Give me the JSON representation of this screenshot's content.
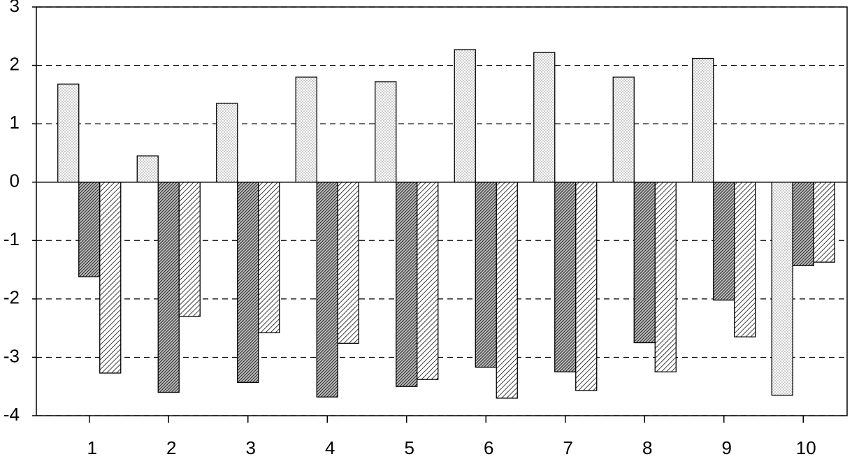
{
  "chart_data": {
    "type": "bar",
    "categories": [
      "1",
      "2",
      "3",
      "4",
      "5",
      "6",
      "7",
      "8",
      "9",
      "10"
    ],
    "series": [
      {
        "color": "#000000",
        "pattern": "dots",
        "values": [
          1.68,
          0.45,
          1.35,
          1.8,
          1.72,
          2.27,
          2.22,
          1.8,
          2.12,
          -3.65
        ]
      },
      {
        "color": "#000000",
        "pattern": "dense-hatch",
        "values": [
          -1.62,
          -3.6,
          -3.43,
          -3.68,
          -3.5,
          -3.17,
          -3.25,
          -2.75,
          -2.02,
          -1.43
        ]
      },
      {
        "color": "#000000",
        "pattern": "hatch",
        "values": [
          -3.27,
          -2.3,
          -2.58,
          -2.76,
          -3.38,
          -3.7,
          -3.57,
          -3.25,
          -2.65,
          -1.37
        ]
      }
    ],
    "ylim": [
      -4,
      3
    ],
    "yticks": [
      -4,
      -3,
      -2,
      -1,
      0,
      1,
      2,
      3
    ],
    "grid": true
  }
}
